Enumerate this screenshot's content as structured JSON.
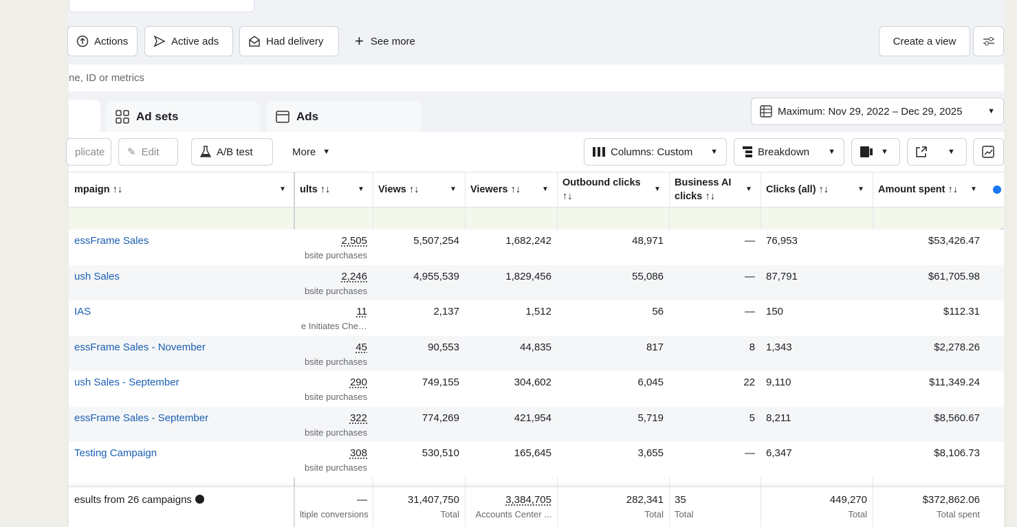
{
  "filters": {
    "buttons": [
      "Actions",
      "Active ads",
      "Had delivery"
    ],
    "see_more": "See more",
    "create_view": "Create a view"
  },
  "search": {
    "placeholder": "ne, ID or metrics"
  },
  "tabs": [
    "Ad sets",
    "Ads"
  ],
  "date_range": "Maximum: Nov 29, 2022 – Dec 29, 2025",
  "toolbar": {
    "duplicate": "plicate",
    "edit": "Edit",
    "ab_test": "A/B test",
    "more": "More",
    "columns": "Columns: Custom",
    "breakdown": "Breakdown"
  },
  "table": {
    "headers": [
      "mpaign ↑↓",
      "ults ↑↓",
      "Views ↑↓",
      "Viewers ↑↓",
      "Outbound clicks ↑↓",
      "Business AI clicks ↑↓",
      "Clicks (all) ↑↓",
      "Amount spent ↑↓"
    ],
    "rows": [
      [
        "essFrame Sales",
        "2,505",
        "bsite purchases",
        "5,507,254",
        "1,682,242",
        "48,971",
        "—",
        "76,953",
        "$53,426.47"
      ],
      [
        "ush Sales",
        "2,246",
        "bsite purchases",
        "4,955,539",
        "1,829,456",
        "55,086",
        "—",
        "87,791",
        "$61,705.98"
      ],
      [
        "IAS",
        "11",
        "e Initiates Che…",
        "2,137",
        "1,512",
        "56",
        "—",
        "150",
        "$112.31"
      ],
      [
        "essFrame Sales - November",
        "45",
        "bsite purchases",
        "90,553",
        "44,835",
        "817",
        "8",
        "1,343",
        "$2,278.26"
      ],
      [
        "ush Sales - September",
        "290",
        "bsite purchases",
        "749,155",
        "304,602",
        "6,045",
        "22",
        "9,110",
        "$11,349.24"
      ],
      [
        "essFrame Sales - September",
        "322",
        "bsite purchases",
        "774,269",
        "421,954",
        "5,719",
        "5",
        "8,211",
        "$8,560.67"
      ],
      [
        "Testing Campaign",
        "308",
        "bsite purchases",
        "530,510",
        "165,645",
        "3,655",
        "—",
        "6,347",
        "$8,106.73"
      ]
    ],
    "footer": [
      [
        "esults from 26 campaigns",
        ""
      ],
      [
        "—",
        "ltiple conversions"
      ],
      [
        "31,407,750",
        "Total"
      ],
      [
        "3,384,705",
        "Accounts Center ..."
      ],
      [
        "282,341",
        "Total"
      ],
      [
        "35",
        "Total"
      ],
      [
        "449,270",
        "Total"
      ],
      [
        "$372,862.06",
        "Total spent"
      ]
    ]
  }
}
